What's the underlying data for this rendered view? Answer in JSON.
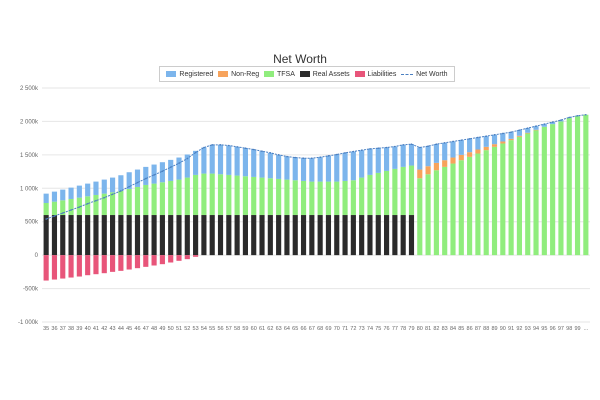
{
  "chart_data": {
    "type": "bar",
    "title": "Net Worth",
    "legend_position": "top-center",
    "grid": true,
    "ylim": [
      -1000000,
      2500000
    ],
    "y_ticks": [
      {
        "value": 2500000,
        "label": "2 500k"
      },
      {
        "value": 2000000,
        "label": "2 000k"
      },
      {
        "value": 1500000,
        "label": "1 500k"
      },
      {
        "value": 1000000,
        "label": "1 000k"
      },
      {
        "value": 500000,
        "label": "500k"
      },
      {
        "value": 0,
        "label": "0"
      },
      {
        "value": -500000,
        "label": "-500k"
      },
      {
        "value": -1000000,
        "label": "-1 000k"
      }
    ],
    "categories": [
      "35",
      "36",
      "37",
      "38",
      "39",
      "40",
      "41",
      "42",
      "43",
      "44",
      "45",
      "46",
      "47",
      "48",
      "49",
      "50",
      "51",
      "52",
      "53",
      "54",
      "55",
      "56",
      "57",
      "58",
      "59",
      "60",
      "61",
      "62",
      "63",
      "64",
      "65",
      "66",
      "67",
      "68",
      "69",
      "70",
      "71",
      "72",
      "73",
      "74",
      "75",
      "76",
      "77",
      "78",
      "79",
      "80",
      "81",
      "82",
      "83",
      "84",
      "85",
      "86",
      "87",
      "88",
      "89",
      "90",
      "91",
      "92",
      "93",
      "94",
      "95",
      "96",
      "97",
      "98",
      "99",
      "..."
    ],
    "series": [
      {
        "name": "Registered",
        "color": "#7cb5ec",
        "kind": "stack",
        "values": [
          140000,
          150000,
          160000,
          170000,
          180000,
          190000,
          200000,
          210000,
          220000,
          235000,
          250000,
          260000,
          270000,
          285000,
          300000,
          315000,
          330000,
          345000,
          360000,
          390000,
          430000,
          440000,
          440000,
          430000,
          420000,
          410000,
          395000,
          380000,
          360000,
          345000,
          340000,
          340000,
          350000,
          365000,
          385000,
          405000,
          420000,
          430000,
          410000,
          390000,
          370000,
          350000,
          335000,
          330000,
          320000,
          330000,
          300000,
          280000,
          260000,
          240000,
          220000,
          200000,
          180000,
          160000,
          140000,
          120000,
          100000,
          85000,
          70000,
          55000,
          40000,
          30000,
          20000,
          10000,
          5000,
          0
        ]
      },
      {
        "name": "Non-Reg",
        "color": "#f7a35c",
        "kind": "stack",
        "values": [
          0,
          0,
          0,
          0,
          0,
          0,
          0,
          0,
          0,
          0,
          0,
          0,
          0,
          0,
          0,
          0,
          0,
          0,
          0,
          0,
          0,
          0,
          0,
          0,
          0,
          0,
          0,
          0,
          0,
          0,
          0,
          0,
          0,
          0,
          0,
          0,
          0,
          0,
          0,
          0,
          0,
          0,
          0,
          0,
          0,
          130000,
          120000,
          110000,
          100000,
          90000,
          80000,
          70000,
          60000,
          50000,
          40000,
          30000,
          20000,
          15000,
          10000,
          5000,
          0,
          0,
          0,
          0,
          0,
          0
        ]
      },
      {
        "name": "TFSA",
        "color": "#90ed7d",
        "kind": "stack",
        "values": [
          180000,
          200000,
          220000,
          240000,
          260000,
          280000,
          300000,
          320000,
          340000,
          360000,
          390000,
          420000,
          450000,
          470000,
          490000,
          510000,
          530000,
          560000,
          600000,
          620000,
          620000,
          610000,
          600000,
          590000,
          580000,
          570000,
          560000,
          550000,
          540000,
          530000,
          520000,
          510000,
          500000,
          500000,
          500000,
          500000,
          510000,
          520000,
          560000,
          600000,
          630000,
          660000,
          690000,
          720000,
          740000,
          1150000,
          1210000,
          1270000,
          1320000,
          1370000,
          1420000,
          1470000,
          1520000,
          1570000,
          1620000,
          1670000,
          1720000,
          1770000,
          1820000,
          1870000,
          1920000,
          1960000,
          2000000,
          2050000,
          2080000,
          2100000
        ]
      },
      {
        "name": "Real Assets",
        "color": "#2b2b2b",
        "kind": "stack",
        "values": [
          600000,
          600000,
          600000,
          600000,
          600000,
          600000,
          600000,
          600000,
          600000,
          600000,
          600000,
          600000,
          600000,
          600000,
          600000,
          600000,
          600000,
          600000,
          600000,
          600000,
          600000,
          600000,
          600000,
          600000,
          600000,
          600000,
          600000,
          600000,
          600000,
          600000,
          600000,
          600000,
          600000,
          600000,
          600000,
          600000,
          600000,
          600000,
          600000,
          600000,
          600000,
          600000,
          600000,
          600000,
          600000,
          0,
          0,
          0,
          0,
          0,
          0,
          0,
          0,
          0,
          0,
          0,
          0,
          0,
          0,
          0,
          0,
          0,
          0,
          0,
          0,
          0
        ]
      },
      {
        "name": "Liabilities",
        "color": "#e8557a",
        "kind": "stack",
        "values": [
          -380000,
          -365000,
          -350000,
          -335000,
          -320000,
          -300000,
          -285000,
          -270000,
          -250000,
          -235000,
          -215000,
          -195000,
          -175000,
          -155000,
          -135000,
          -110000,
          -85000,
          -60000,
          -25000,
          0,
          0,
          0,
          0,
          0,
          0,
          0,
          0,
          0,
          0,
          0,
          0,
          0,
          0,
          0,
          0,
          0,
          0,
          0,
          0,
          0,
          0,
          0,
          0,
          0,
          0,
          0,
          0,
          0,
          0,
          0,
          0,
          0,
          0,
          0,
          0,
          0,
          0,
          0,
          0,
          0,
          0,
          0,
          0,
          0,
          0,
          0
        ]
      },
      {
        "name": "Net Worth",
        "color": "#4a7fc1",
        "kind": "line",
        "values": [
          540000,
          585000,
          630000,
          675000,
          720000,
          770000,
          815000,
          860000,
          910000,
          960000,
          1025000,
          1085000,
          1145000,
          1200000,
          1255000,
          1315000,
          1375000,
          1445000,
          1535000,
          1610000,
          1650000,
          1650000,
          1640000,
          1620000,
          1600000,
          1580000,
          1555000,
          1530000,
          1500000,
          1475000,
          1460000,
          1450000,
          1450000,
          1465000,
          1485000,
          1505000,
          1530000,
          1550000,
          1570000,
          1590000,
          1600000,
          1610000,
          1625000,
          1650000,
          1660000,
          1610000,
          1630000,
          1660000,
          1680000,
          1700000,
          1720000,
          1740000,
          1760000,
          1780000,
          1800000,
          1820000,
          1840000,
          1870000,
          1900000,
          1930000,
          1960000,
          1990000,
          2020000,
          2060000,
          2085000,
          2100000
        ]
      }
    ]
  }
}
